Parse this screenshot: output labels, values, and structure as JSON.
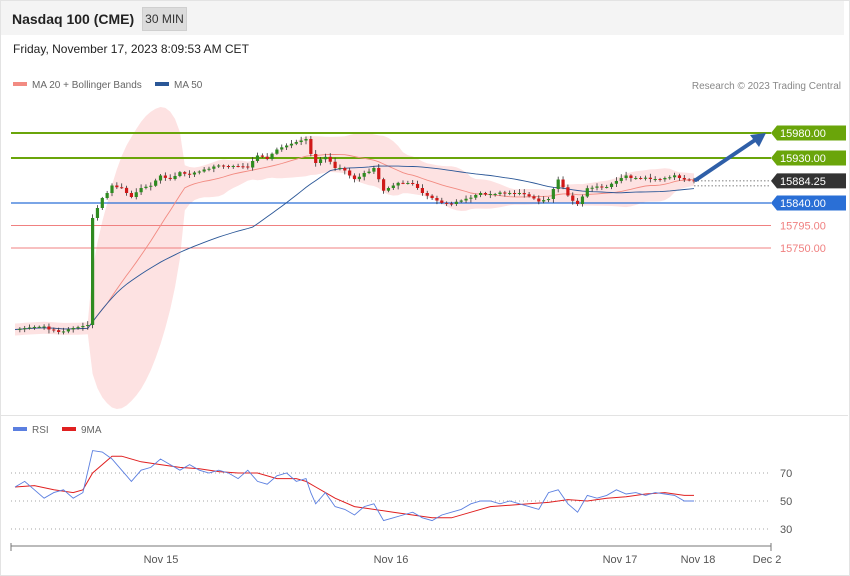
{
  "header": {
    "symbol": "Nasdaq 100 (CME)",
    "interval": "30 MIN",
    "timestamp": "Friday, November 17, 2023 8:09:53 AM CET"
  },
  "legend": {
    "ma20_label": "MA 20 + Bollinger Bands",
    "ma20_color": "#f28b82",
    "ma50_label": "MA 50",
    "ma50_color": "#2b5797",
    "credit": "Research © 2023 Trading Central"
  },
  "rsi_legend": {
    "rsi_label": "RSI",
    "rsi_color": "#5b7fe0",
    "ma_label": "9MA",
    "ma_color": "#e02020"
  },
  "colors": {
    "resistance": "#6aa50a",
    "support": "#2a6fd6",
    "pivot_support": "#f08080",
    "last_price": "#333333",
    "bull_candle": "#2e8b20",
    "bear_candle": "#d01818",
    "bollinger_fill": "#fde2e2",
    "arrow": "#2f5fa8"
  },
  "chart_data": {
    "type": "candlestick",
    "title": "Nasdaq 100 (CME)",
    "interval": "30 MIN",
    "x_ticks": [
      "Nov 15",
      "Nov 16",
      "Nov 17",
      "Nov 18",
      "Dec 2"
    ],
    "last_price": "15884.25",
    "levels": [
      {
        "label": "15980.00",
        "value": 15980,
        "kind": "resistance"
      },
      {
        "label": "15930.00",
        "value": 15930,
        "kind": "resistance"
      },
      {
        "label": "15884.25",
        "value": 15884.25,
        "kind": "last"
      },
      {
        "label": "15840.00",
        "value": 15840,
        "kind": "pivot"
      },
      {
        "label": "15795.00",
        "value": 15795,
        "kind": "support"
      },
      {
        "label": "15750.00",
        "value": 15750,
        "kind": "support"
      }
    ],
    "close_path": [
      [
        0,
        15587
      ],
      [
        3,
        15591
      ],
      [
        6,
        15593
      ],
      [
        9,
        15582
      ],
      [
        12,
        15590
      ],
      [
        15,
        15596
      ],
      [
        16,
        15810
      ],
      [
        18,
        15850
      ],
      [
        20,
        15875
      ],
      [
        22,
        15868
      ],
      [
        24,
        15852
      ],
      [
        26,
        15870
      ],
      [
        28,
        15875
      ],
      [
        30,
        15895
      ],
      [
        32,
        15888
      ],
      [
        34,
        15900
      ],
      [
        36,
        15897
      ],
      [
        38,
        15903
      ],
      [
        40,
        15911
      ],
      [
        42,
        15915
      ],
      [
        44,
        15913
      ],
      [
        46,
        15915
      ],
      [
        48,
        15911
      ],
      [
        50,
        15935
      ],
      [
        52,
        15930
      ],
      [
        54,
        15947
      ],
      [
        56,
        15955
      ],
      [
        58,
        15962
      ],
      [
        60,
        15968
      ],
      [
        61,
        15940
      ],
      [
        62,
        15920
      ],
      [
        64,
        15935
      ],
      [
        66,
        15910
      ],
      [
        68,
        15905
      ],
      [
        70,
        15885
      ],
      [
        72,
        15900
      ],
      [
        74,
        15910
      ],
      [
        76,
        15865
      ],
      [
        78,
        15875
      ],
      [
        80,
        15880
      ],
      [
        82,
        15880
      ],
      [
        84,
        15860
      ],
      [
        86,
        15850
      ],
      [
        88,
        15840
      ],
      [
        90,
        15838
      ],
      [
        92,
        15845
      ],
      [
        94,
        15852
      ],
      [
        96,
        15860
      ],
      [
        98,
        15858
      ],
      [
        100,
        15858
      ],
      [
        102,
        15860
      ],
      [
        104,
        15860
      ],
      [
        106,
        15855
      ],
      [
        108,
        15843
      ],
      [
        110,
        15848
      ],
      [
        112,
        15888
      ],
      [
        114,
        15855
      ],
      [
        116,
        15838
      ],
      [
        118,
        15868
      ],
      [
        120,
        15873
      ],
      [
        122,
        15872
      ],
      [
        124,
        15885
      ],
      [
        126,
        15895
      ],
      [
        128,
        15890
      ],
      [
        130,
        15888
      ],
      [
        132,
        15888
      ],
      [
        134,
        15890
      ],
      [
        136,
        15893
      ],
      [
        138,
        15887
      ],
      [
        140,
        15884
      ]
    ],
    "rsi": {
      "levels": [
        70,
        50,
        30
      ],
      "rsi_series": [
        [
          0,
          60
        ],
        [
          2,
          64
        ],
        [
          4,
          58
        ],
        [
          6,
          52
        ],
        [
          8,
          56
        ],
        [
          10,
          58
        ],
        [
          12,
          52
        ],
        [
          14,
          56
        ],
        [
          16,
          86
        ],
        [
          18,
          85
        ],
        [
          20,
          80
        ],
        [
          22,
          72
        ],
        [
          24,
          64
        ],
        [
          26,
          72
        ],
        [
          28,
          74
        ],
        [
          30,
          80
        ],
        [
          32,
          76
        ],
        [
          34,
          72
        ],
        [
          36,
          76
        ],
        [
          38,
          72
        ],
        [
          40,
          70
        ],
        [
          42,
          72
        ],
        [
          44,
          70
        ],
        [
          46,
          66
        ],
        [
          48,
          72
        ],
        [
          50,
          64
        ],
        [
          52,
          62
        ],
        [
          54,
          68
        ],
        [
          56,
          70
        ],
        [
          58,
          64
        ],
        [
          60,
          66
        ],
        [
          61,
          56
        ],
        [
          62,
          48
        ],
        [
          64,
          56
        ],
        [
          66,
          46
        ],
        [
          68,
          44
        ],
        [
          70,
          40
        ],
        [
          72,
          46
        ],
        [
          74,
          48
        ],
        [
          76,
          36
        ],
        [
          78,
          38
        ],
        [
          80,
          40
        ],
        [
          82,
          42
        ],
        [
          84,
          38
        ],
        [
          86,
          36
        ],
        [
          88,
          40
        ],
        [
          90,
          42
        ],
        [
          92,
          44
        ],
        [
          94,
          48
        ],
        [
          96,
          50
        ],
        [
          98,
          50
        ],
        [
          100,
          48
        ],
        [
          102,
          50
        ],
        [
          104,
          48
        ],
        [
          106,
          46
        ],
        [
          108,
          44
        ],
        [
          110,
          56
        ],
        [
          112,
          58
        ],
        [
          114,
          48
        ],
        [
          116,
          42
        ],
        [
          118,
          54
        ],
        [
          120,
          52
        ],
        [
          122,
          54
        ],
        [
          124,
          58
        ],
        [
          126,
          55
        ],
        [
          128,
          56
        ],
        [
          130,
          54
        ],
        [
          132,
          56
        ],
        [
          134,
          55
        ],
        [
          136,
          54
        ],
        [
          138,
          50
        ],
        [
          140,
          50
        ]
      ],
      "ma_series": [
        [
          0,
          60
        ],
        [
          4,
          61
        ],
        [
          8,
          58
        ],
        [
          12,
          56
        ],
        [
          14,
          58
        ],
        [
          16,
          70
        ],
        [
          20,
          82
        ],
        [
          22,
          82
        ],
        [
          26,
          78
        ],
        [
          30,
          76
        ],
        [
          34,
          74
        ],
        [
          38,
          73
        ],
        [
          42,
          71
        ],
        [
          46,
          70
        ],
        [
          50,
          70
        ],
        [
          54,
          66
        ],
        [
          58,
          66
        ],
        [
          60,
          64
        ],
        [
          62,
          60
        ],
        [
          64,
          56
        ],
        [
          66,
          52
        ],
        [
          70,
          46
        ],
        [
          74,
          44
        ],
        [
          78,
          42
        ],
        [
          82,
          40
        ],
        [
          86,
          38
        ],
        [
          90,
          38
        ],
        [
          94,
          42
        ],
        [
          98,
          46
        ],
        [
          102,
          47
        ],
        [
          106,
          48
        ],
        [
          110,
          49
        ],
        [
          114,
          51
        ],
        [
          118,
          50
        ],
        [
          122,
          52
        ],
        [
          126,
          53
        ],
        [
          130,
          55
        ],
        [
          134,
          56
        ],
        [
          138,
          54
        ],
        [
          140,
          54
        ]
      ]
    }
  }
}
